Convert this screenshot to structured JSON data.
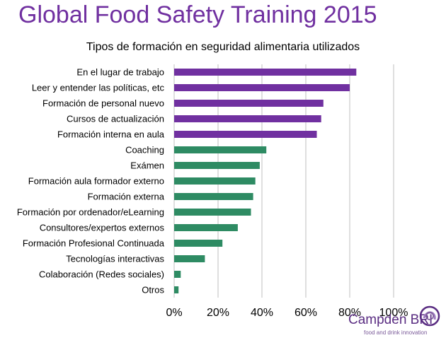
{
  "header": {
    "title": "Global Food Safety Training 2015"
  },
  "logo": {
    "name": "Campden BRI",
    "tagline": "food and drink innovation"
  },
  "colors": {
    "title": "#7030a0",
    "purple_bar": "#7030a0",
    "green_bar": "#2e8b63",
    "gridline": "#bfbfbf"
  },
  "chart_data": {
    "type": "bar",
    "orientation": "horizontal",
    "title": "Tipos de formación en seguridad alimentaria utilizados",
    "xlabel": "",
    "ylabel": "",
    "xlim": [
      0,
      100
    ],
    "xticks": [
      "0%",
      "20%",
      "40%",
      "60%",
      "80%",
      "100%"
    ],
    "grid": true,
    "categories": [
      "En el lugar de trabajo",
      "Leer y entender las políticas, etc",
      "Formación de personal nuevo",
      "Cursos de actualización",
      "Formación interna en aula",
      "Coaching",
      "Exámen",
      "Formación aula formador externo",
      "Formación externa",
      "Formación por ordenador/eLearning",
      "Consultores/expertos externos",
      "Formación Profesional Continuada",
      "Tecnologías interactivas",
      "Colaboración (Redes sociales)",
      "Otros"
    ],
    "values": [
      83,
      80,
      68,
      67,
      65,
      42,
      39,
      37,
      36,
      35,
      29,
      22,
      14,
      3,
      2
    ],
    "bar_groups": [
      "purple",
      "purple",
      "purple",
      "purple",
      "purple",
      "green",
      "green",
      "green",
      "green",
      "green",
      "green",
      "green",
      "green",
      "green",
      "green"
    ]
  }
}
